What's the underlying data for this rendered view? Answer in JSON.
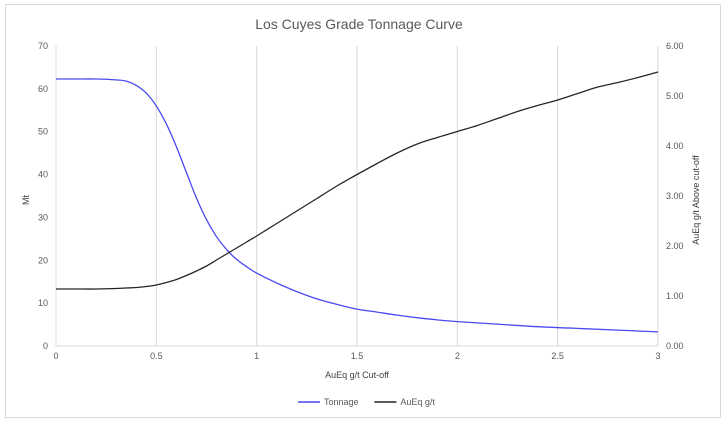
{
  "chart_data": {
    "type": "line",
    "title": "Los Cuyes Grade Tonnage Curve",
    "xlabel": "AuEq g/t Cut-off",
    "ylabel": "Mt",
    "y2label": "AuEq g/t Above cut-off",
    "xlim": [
      0,
      3
    ],
    "ylim": [
      0,
      70
    ],
    "y2lim": [
      0,
      6
    ],
    "x_ticks": [
      "0",
      "0.5",
      "1",
      "1.5",
      "2",
      "2.5",
      "3"
    ],
    "y_ticks": [
      "0",
      "10",
      "20",
      "30",
      "40",
      "50",
      "60",
      "70"
    ],
    "y2_ticks": [
      "0.00",
      "1.00",
      "2.00",
      "3.00",
      "4.00",
      "5.00",
      "6.00"
    ],
    "grid": "vertical",
    "legend_position": "bottom",
    "series": [
      {
        "name": "Tonnage",
        "axis": "left",
        "color": "#4a4af0",
        "x": [
          0,
          0.1,
          0.2,
          0.3,
          0.35,
          0.4,
          0.45,
          0.5,
          0.55,
          0.6,
          0.65,
          0.7,
          0.75,
          0.8,
          0.85,
          0.9,
          0.95,
          1.0,
          1.1,
          1.2,
          1.3,
          1.4,
          1.5,
          1.6,
          1.7,
          1.8,
          1.9,
          2.0,
          2.2,
          2.4,
          2.6,
          2.8,
          3.0
        ],
        "values": [
          62.3,
          62.3,
          62.3,
          62.1,
          61.8,
          60.8,
          59.0,
          56.0,
          51.8,
          46.5,
          40.5,
          34.5,
          29.5,
          25.5,
          22.5,
          20.2,
          18.5,
          17.0,
          14.7,
          12.7,
          11.0,
          9.7,
          8.6,
          7.9,
          7.2,
          6.6,
          6.1,
          5.7,
          5.1,
          4.5,
          4.1,
          3.7,
          3.3
        ]
      },
      {
        "name": "AuEq g/t",
        "axis": "right",
        "color": "#262626",
        "x": [
          0,
          0.1,
          0.2,
          0.3,
          0.35,
          0.4,
          0.45,
          0.5,
          0.55,
          0.6,
          0.65,
          0.7,
          0.75,
          0.8,
          0.85,
          0.9,
          0.95,
          1.0,
          1.1,
          1.2,
          1.3,
          1.4,
          1.5,
          1.6,
          1.7,
          1.8,
          1.9,
          2.0,
          2.1,
          2.2,
          2.3,
          2.4,
          2.5,
          2.6,
          2.7,
          2.8,
          2.9,
          3.0
        ],
        "values": [
          1.14,
          1.14,
          1.14,
          1.15,
          1.16,
          1.17,
          1.19,
          1.22,
          1.27,
          1.33,
          1.41,
          1.5,
          1.6,
          1.72,
          1.84,
          1.96,
          2.08,
          2.2,
          2.45,
          2.7,
          2.95,
          3.2,
          3.43,
          3.65,
          3.86,
          4.04,
          4.17,
          4.29,
          4.41,
          4.55,
          4.69,
          4.81,
          4.92,
          5.05,
          5.18,
          5.27,
          5.37,
          5.48
        ]
      }
    ]
  }
}
